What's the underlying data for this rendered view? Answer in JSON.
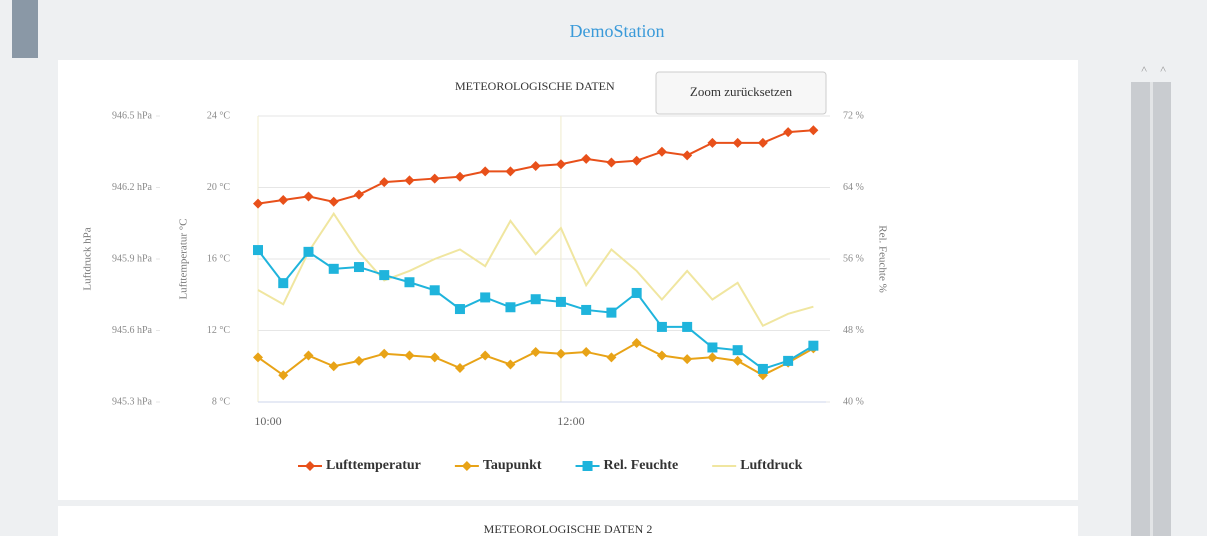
{
  "header": {
    "title": "DemoStation"
  },
  "zoom_button": {
    "label": "Zoom zurücksetzen"
  },
  "chart_data": {
    "type": "line",
    "title": "METEOROLOGISCHE DATEN",
    "x": [
      "10:00",
      "10:10",
      "10:20",
      "10:30",
      "10:40",
      "10:50",
      "11:00",
      "11:10",
      "11:20",
      "11:30",
      "11:40",
      "11:50",
      "12:00",
      "12:10",
      "12:20",
      "12:30",
      "12:40",
      "12:50",
      "13:00",
      "13:10",
      "13:20",
      "13:30",
      "13:40"
    ],
    "xlim": [
      "10:00",
      "13:45"
    ],
    "xticks": [
      "10:00",
      "12:00"
    ],
    "ylabel": "Lufttemperatur °C",
    "ylim": [
      8,
      24
    ],
    "yticks": [
      {
        "value": 8,
        "label": "8 °C"
      },
      {
        "value": 12,
        "label": "12 °C"
      },
      {
        "value": 16,
        "label": "16 °C"
      },
      {
        "value": 20,
        "label": "20 °C"
      },
      {
        "value": 24,
        "label": "24 °C"
      }
    ],
    "y2label": "Rel. Feuchte %",
    "y2lim": [
      40,
      72
    ],
    "y2ticks": [
      {
        "value": 40,
        "label": "40 %"
      },
      {
        "value": 48,
        "label": "48 %"
      },
      {
        "value": 56,
        "label": "56 %"
      },
      {
        "value": 64,
        "label": "64 %"
      },
      {
        "value": 72,
        "label": "72 %"
      }
    ],
    "y3label": "Luftdruck hPa",
    "y3lim": [
      945.3,
      946.5
    ],
    "y3ticks": [
      {
        "value": 945.3,
        "label": "945.3 hPa"
      },
      {
        "value": 945.6,
        "label": "945.6 hPa"
      },
      {
        "value": 945.9,
        "label": "945.9 hPa"
      },
      {
        "value": 946.2,
        "label": "946.2 hPa"
      },
      {
        "value": 946.5,
        "label": "946.5 hPa"
      }
    ],
    "grid": true,
    "legend": "bottom",
    "series": [
      {
        "name": "Lufttemperatur",
        "color": "#e8501a",
        "marker": "diamond",
        "axis": "y",
        "values": [
          19.1,
          19.3,
          19.5,
          19.2,
          19.6,
          20.3,
          20.4,
          20.5,
          20.6,
          20.9,
          20.9,
          21.2,
          21.3,
          21.6,
          21.4,
          21.5,
          22.0,
          21.8,
          22.5,
          22.5,
          22.5,
          23.1,
          23.2
        ]
      },
      {
        "name": "Taupunkt",
        "color": "#e8a317",
        "marker": "diamond",
        "axis": "y",
        "values": [
          10.5,
          9.5,
          10.6,
          10.0,
          10.3,
          10.7,
          10.6,
          10.5,
          9.9,
          10.6,
          10.1,
          10.8,
          10.7,
          10.8,
          10.5,
          11.3,
          10.6,
          10.4,
          10.5,
          10.3,
          9.5,
          10.2,
          11.0
        ]
      },
      {
        "name": "Rel. Feuchte",
        "color": "#1fb4dc",
        "marker": "square",
        "axis": "y2",
        "values": [
          57.0,
          53.3,
          56.8,
          54.9,
          55.1,
          54.2,
          53.4,
          52.5,
          50.4,
          51.7,
          50.6,
          51.5,
          51.2,
          50.3,
          50.0,
          52.2,
          48.4,
          48.4,
          46.1,
          45.8,
          43.7,
          44.6,
          46.3
        ]
      },
      {
        "name": "Luftdruck",
        "color": "#f0e6a0",
        "marker": "none",
        "axis": "y3",
        "values": [
          945.77,
          945.71,
          945.93,
          946.09,
          945.93,
          945.81,
          945.85,
          945.9,
          945.94,
          945.87,
          946.06,
          945.92,
          946.03,
          945.79,
          945.94,
          945.85,
          945.73,
          945.85,
          945.73,
          945.8,
          945.62,
          945.67,
          945.7
        ]
      }
    ]
  },
  "second_chart": {
    "title": "METEOROLOGISCHE DATEN 2"
  }
}
